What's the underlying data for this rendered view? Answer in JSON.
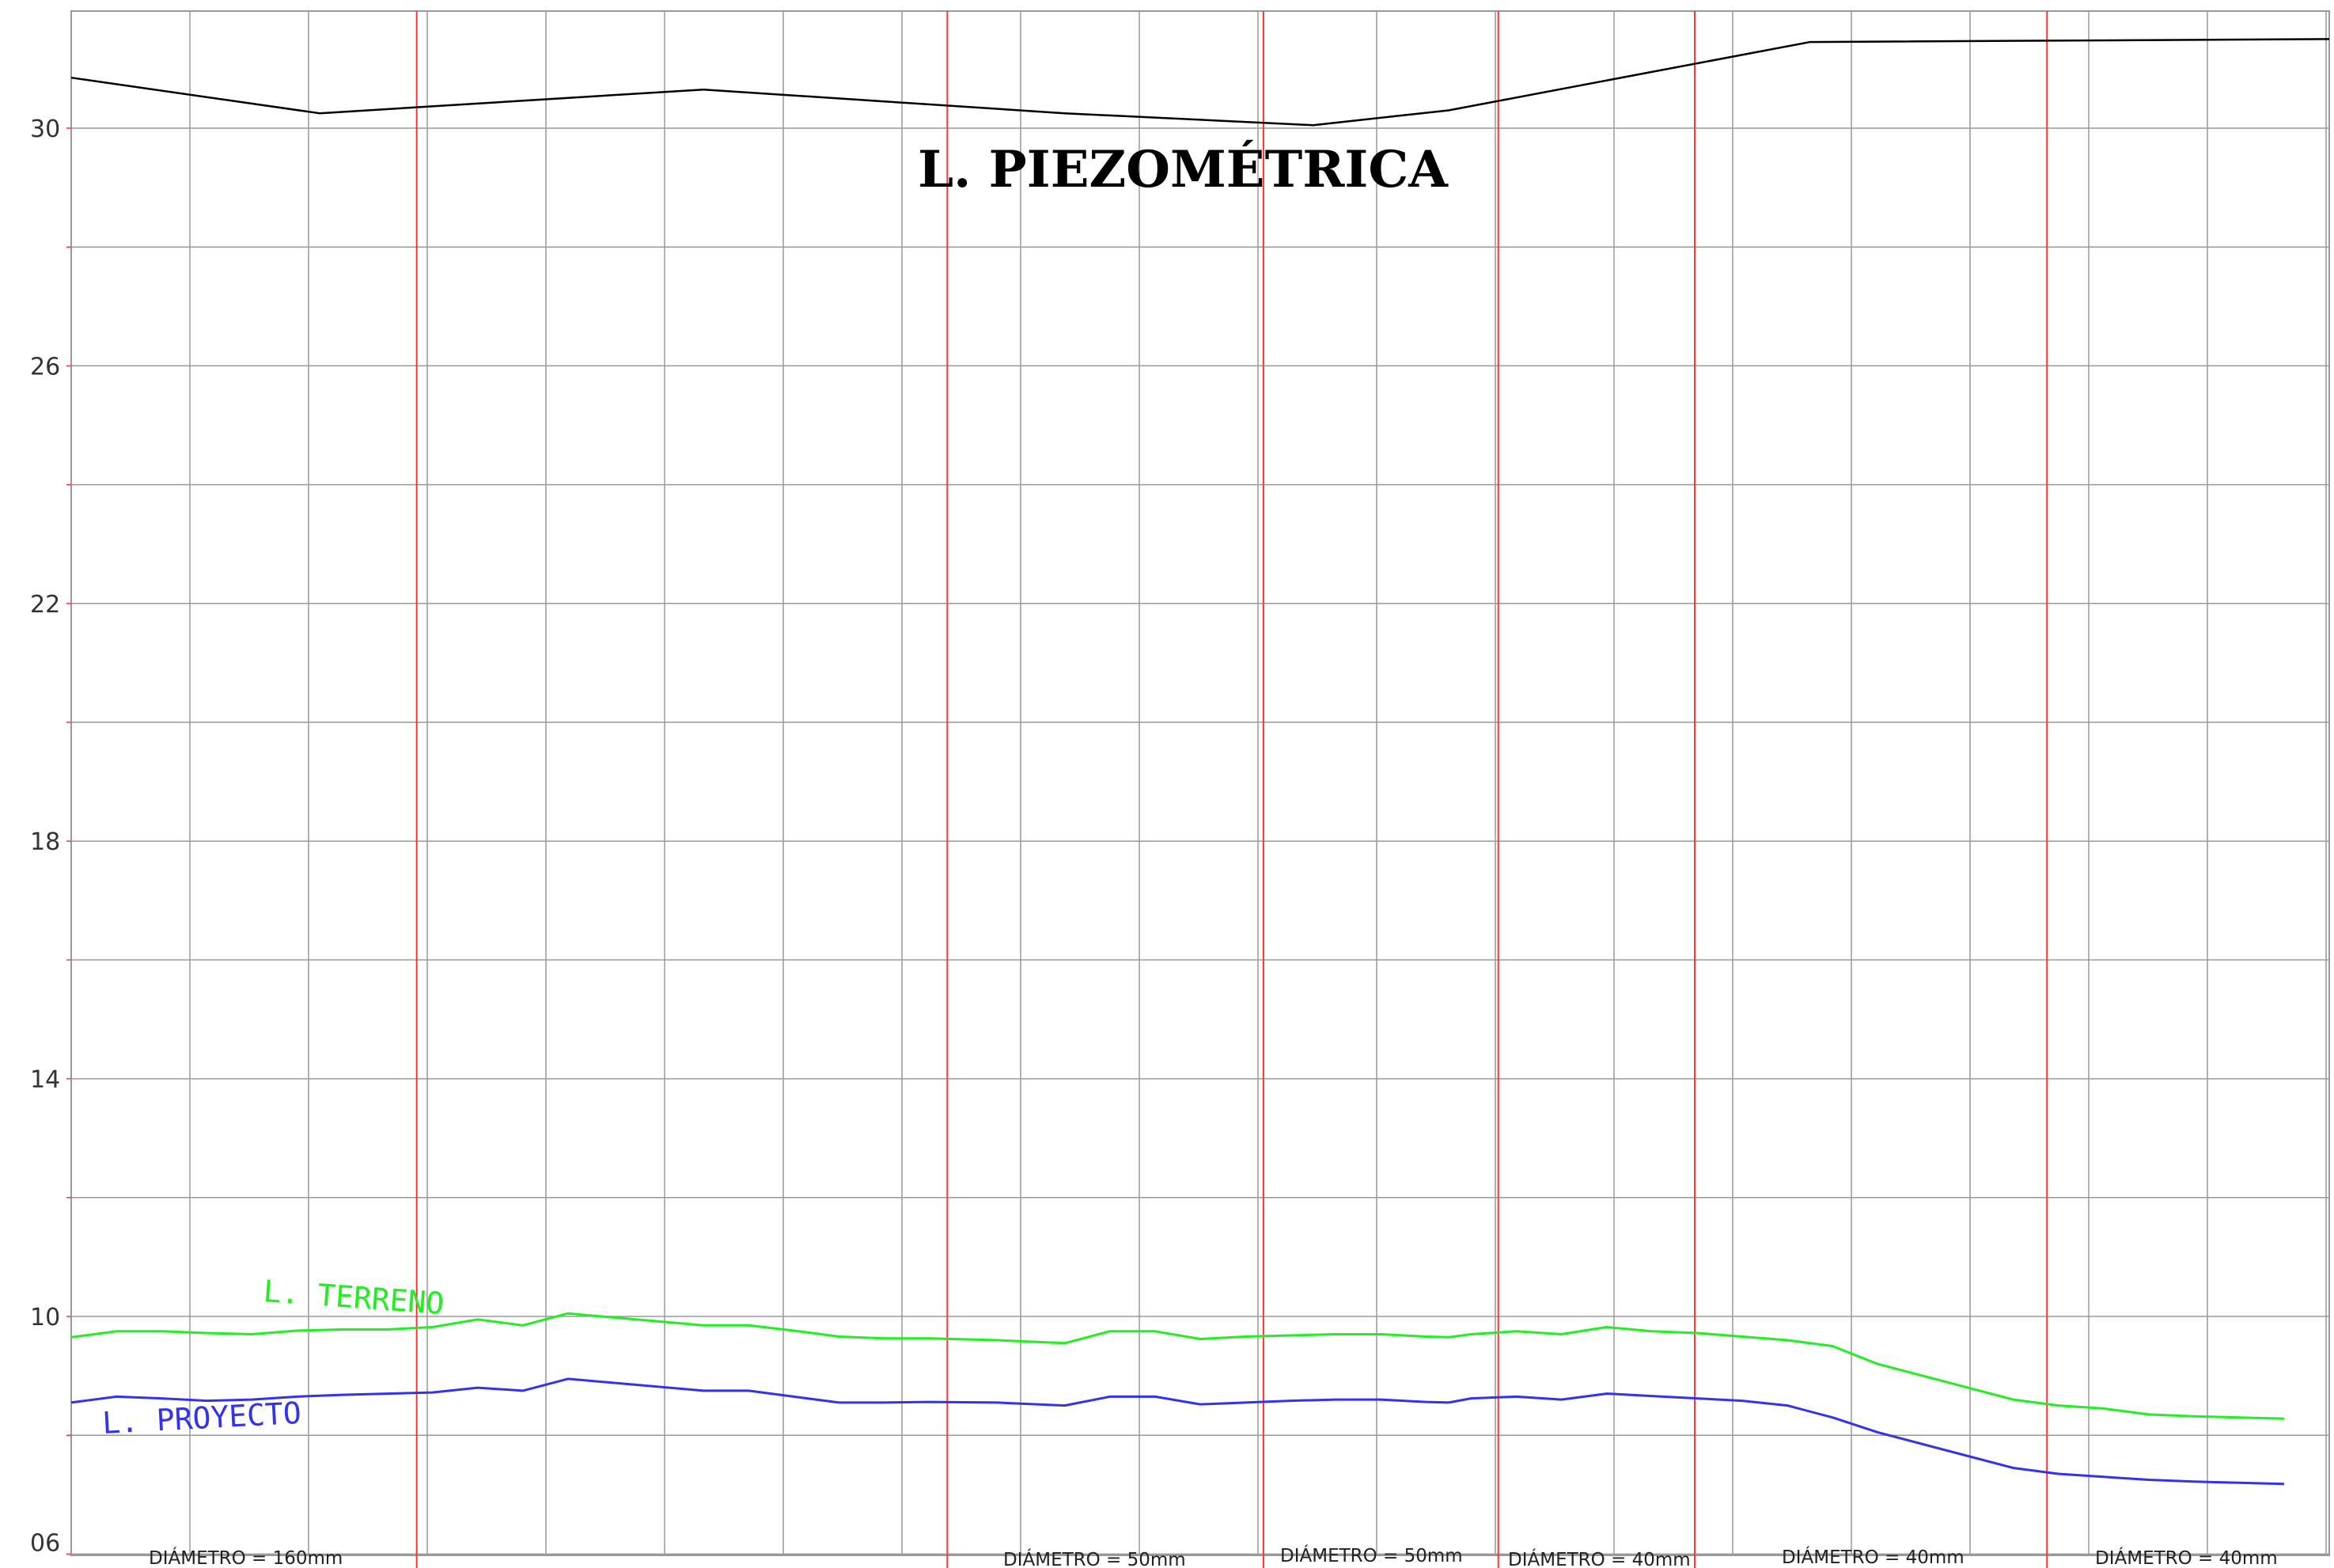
{
  "chart_data": {
    "type": "line",
    "title": "L. PIEZOMÉTRICA",
    "y_ticks": [
      {
        "value": 30,
        "label": "30"
      },
      {
        "value": 26,
        "label": "26"
      },
      {
        "value": 22,
        "label": "22"
      },
      {
        "value": 18,
        "label": "18"
      },
      {
        "value": 14,
        "label": "14"
      },
      {
        "value": 10,
        "label": "10"
      },
      {
        "value": 6.2,
        "label": "06"
      }
    ],
    "ylim": [
      6,
      32
    ],
    "grid": true,
    "colors": {
      "piezometrica": "#000000",
      "terreno": "#22ee22",
      "proyecto": "#3333ee",
      "section_lines": "#ff3333",
      "grid": "#999999"
    },
    "series": [
      {
        "key": "piezometrica",
        "x": [
          0,
          11,
          28,
          44,
          55,
          61,
          77,
          100
        ],
        "y": [
          30.85,
          30.25,
          30.65,
          30.25,
          30.05,
          30.3,
          31.45,
          31.5
        ]
      },
      {
        "name": "L. TERRENO",
        "key": "terreno",
        "x": [
          0,
          2,
          4,
          6,
          8,
          10,
          12,
          14,
          16,
          18,
          20,
          22,
          25,
          28,
          30,
          32,
          34,
          36,
          38,
          41,
          44,
          46,
          48,
          50,
          52,
          54,
          56,
          58,
          60,
          61,
          62,
          64,
          66,
          68,
          70,
          72,
          74,
          76,
          78,
          80,
          82,
          84,
          86,
          88,
          90,
          92,
          94,
          96,
          98
        ],
        "y": [
          9.65,
          9.75,
          9.75,
          9.72,
          9.7,
          9.76,
          9.78,
          9.78,
          9.82,
          9.95,
          9.85,
          10.05,
          9.95,
          9.85,
          9.85,
          9.76,
          9.66,
          9.63,
          9.63,
          9.6,
          9.55,
          9.75,
          9.75,
          9.62,
          9.66,
          9.68,
          9.7,
          9.7,
          9.66,
          9.65,
          9.7,
          9.75,
          9.7,
          9.82,
          9.75,
          9.72,
          9.66,
          9.6,
          9.5,
          9.2,
          9.0,
          8.8,
          8.6,
          8.5,
          8.45,
          8.35,
          8.32,
          8.3,
          8.28
        ]
      },
      {
        "name": "L. PROYECTO",
        "key": "proyecto",
        "x": [
          0,
          2,
          4,
          6,
          8,
          10,
          12,
          14,
          16,
          18,
          20,
          22,
          25,
          28,
          30,
          32,
          34,
          36,
          38,
          41,
          44,
          46,
          48,
          50,
          52,
          54,
          56,
          58,
          60,
          61,
          62,
          64,
          66,
          68,
          70,
          72,
          74,
          76,
          78,
          80,
          82,
          84,
          86,
          88,
          90,
          92,
          94,
          96,
          98
        ],
        "y": [
          8.55,
          8.65,
          8.62,
          8.58,
          8.6,
          8.65,
          8.68,
          8.7,
          8.72,
          8.8,
          8.75,
          8.95,
          8.85,
          8.75,
          8.75,
          8.65,
          8.55,
          8.55,
          8.56,
          8.55,
          8.5,
          8.65,
          8.65,
          8.52,
          8.55,
          8.58,
          8.6,
          8.6,
          8.56,
          8.55,
          8.62,
          8.65,
          8.6,
          8.7,
          8.66,
          8.62,
          8.58,
          8.5,
          8.3,
          8.05,
          7.85,
          7.65,
          7.45,
          7.35,
          7.3,
          7.25,
          7.22,
          7.2,
          7.18
        ]
      }
    ],
    "annotations": {
      "terreno_label": "L. TERRENO",
      "proyecto_label": "L. PROYECTO"
    },
    "section_breaks_x": [
      15.3,
      38.8,
      52.8,
      63.2,
      71.9,
      87.5
    ],
    "diameter_labels": [
      "DIÁMETRO  =  160mm",
      "DIÁMETRO  =  50mm",
      "DIÁMETRO  =  50mm",
      "DIÁMETRO  =  40mm",
      "DIÁMETRO  =  40mm",
      "DIÁMETRO  =  40mm"
    ]
  }
}
